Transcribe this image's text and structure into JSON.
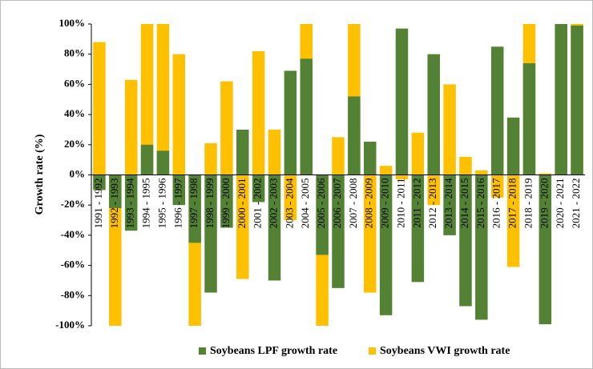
{
  "chart_data": {
    "type": "bar",
    "y_label": "Growth rate (%)",
    "categories": [
      "1991 - 1992",
      "1992 - 1993",
      "1993 - 1994",
      "1994 - 1995",
      "1995 - 1996",
      "1996 - 1997",
      "1997 - 1998",
      "1998 - 1999",
      "1999 - 2000",
      "2000 - 2001",
      "2001 - 2002",
      "2002 - 2003",
      "2003 - 2004",
      "2004 - 2005",
      "2005 - 2006",
      "2006 - 2007",
      "2007 - 2008",
      "2008 - 2009",
      "2009 - 2010",
      "2010 - 2011",
      "2011 - 2012",
      "2012 - 2013",
      "2013 - 2014",
      "2014 - 2015",
      "2015 - 2016",
      "2016 - 2017",
      "2017 - 2018",
      "2018 - 2019",
      "2019 - 2020",
      "2020 - 2021",
      "2021 - 2022"
    ],
    "series": [
      {
        "name": "Soybeans LPF growth rate",
        "color": "#548235",
        "values": [
          -10,
          -22,
          -37,
          20,
          16,
          -20,
          -45,
          -78,
          -35,
          30,
          -18,
          -70,
          69,
          77,
          -53,
          -75,
          52,
          22,
          -93,
          97,
          -71,
          80,
          -40,
          -87,
          -96,
          85,
          38,
          74,
          -99,
          100,
          99
        ]
      },
      {
        "name": "Soybeans VWI growth rate",
        "color": "#ffc000",
        "values": [
          88,
          -100,
          63,
          100,
          100,
          80,
          -100,
          21,
          62,
          -69,
          82,
          30,
          -30,
          100,
          -100,
          25,
          100,
          -78,
          6,
          -3,
          28,
          -20,
          60,
          12,
          3,
          -15,
          -61,
          100,
          1,
          100,
          100
        ]
      }
    ],
    "ylim": [
      -100,
      100
    ],
    "yticks": [
      {
        "value": -100,
        "label": "-100%"
      },
      {
        "value": -80,
        "label": "-80%"
      },
      {
        "value": -60,
        "label": "-60%"
      },
      {
        "value": -40,
        "label": "-40%"
      },
      {
        "value": -20,
        "label": "-20%"
      },
      {
        "value": 0,
        "label": "0%"
      },
      {
        "value": 20,
        "label": "20%"
      },
      {
        "value": 40,
        "label": "40%"
      },
      {
        "value": 60,
        "label": "60%"
      },
      {
        "value": 80,
        "label": "80%"
      },
      {
        "value": 100,
        "label": "100%"
      }
    ],
    "legend": "bottom"
  }
}
